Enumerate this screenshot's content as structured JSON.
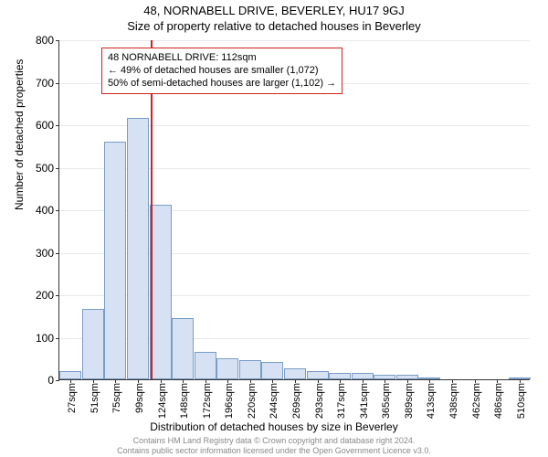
{
  "titles": {
    "line1": "48, NORNABELL DRIVE, BEVERLEY, HU17 9GJ",
    "line2": "Size of property relative to detached houses in Beverley"
  },
  "y_axis": {
    "label": "Number of detached properties",
    "min": 0,
    "max": 800,
    "step": 100,
    "label_fontsize": 12,
    "tick_fontsize": 12
  },
  "x_axis": {
    "label": "Distribution of detached houses by size in Beverley",
    "label_fontsize": 12,
    "tick_fontsize": 11
  },
  "chart": {
    "type": "histogram",
    "bar_fill": "#d6e2f3",
    "bar_border": "#7a9cc6",
    "bar_width": 0.98,
    "grid_color": "#e9e9e9",
    "axis_color": "#333333",
    "background": "#ffffff",
    "categories": [
      "27sqm",
      "51sqm",
      "75sqm",
      "99sqm",
      "124sqm",
      "148sqm",
      "172sqm",
      "196sqm",
      "220sqm",
      "244sqm",
      "269sqm",
      "293sqm",
      "317sqm",
      "341sqm",
      "365sqm",
      "389sqm",
      "413sqm",
      "438sqm",
      "462sqm",
      "486sqm",
      "510sqm"
    ],
    "values": [
      20,
      165,
      560,
      615,
      410,
      145,
      65,
      50,
      45,
      40,
      25,
      20,
      15,
      15,
      10,
      10,
      2,
      0,
      0,
      0,
      2
    ]
  },
  "marker": {
    "position_index": 3.55,
    "color": "#d02020"
  },
  "annotation": {
    "border_color": "#d02020",
    "lines": [
      "48 NORNABELL DRIVE: 112sqm",
      "← 49% of detached houses are smaller (1,072)",
      "50% of semi-detached houses are larger (1,102) →"
    ]
  },
  "footer": {
    "color": "#888888",
    "line1": "Contains HM Land Registry data © Crown copyright and database right 2024.",
    "line2": "Contains public sector information licensed under the Open Government Licence v3.0."
  }
}
